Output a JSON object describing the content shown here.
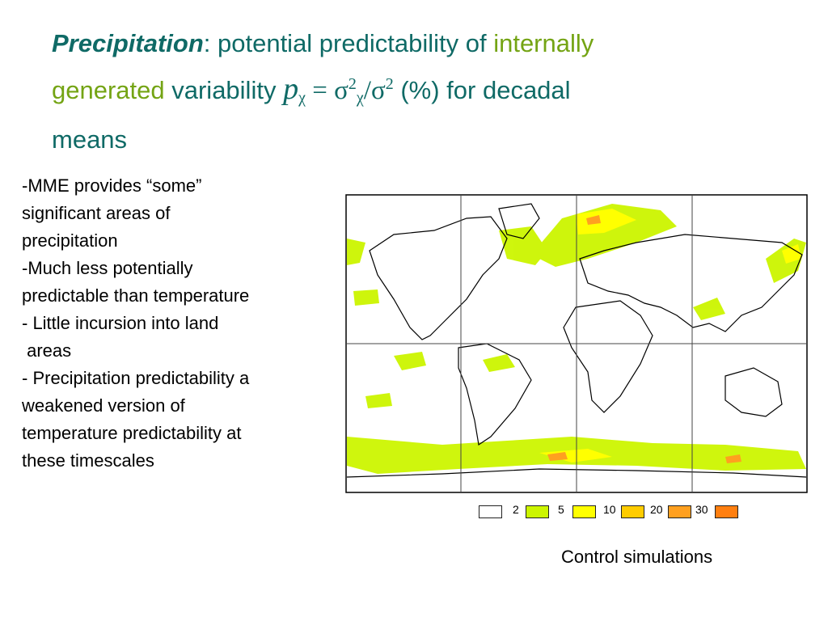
{
  "title": {
    "em": "Precipitation",
    "colon": ": potential predictability of ",
    "internally": "internally",
    "generated": "generated",
    "variability": " variability ",
    "p": "p",
    "chi": "χ",
    "eq": " =  ",
    "sigma": "σ",
    "two": "2",
    "slash": "/",
    "pct": " (%) for decadal",
    "means": "means"
  },
  "bullets": [
    "-MME provides “some”",
    "significant areas of",
    "precipitation",
    "-Much less potentially",
    "predictable than temperature",
    "- Little incursion into land",
    " areas",
    "- Precipitation predictability a",
    "weakened version of",
    "temperature predictability at",
    "these timescales"
  ],
  "legend": {
    "items": [
      {
        "label": "2",
        "color": "#ffffff"
      },
      {
        "label": "5",
        "color": "#ccf500"
      },
      {
        "label": "10",
        "color": "#ffff00"
      },
      {
        "label": "20",
        "color": "#ffcc00"
      },
      {
        "label": "30",
        "color": "#ffa020"
      },
      {
        "label": "",
        "color": "#ff7f10"
      }
    ]
  },
  "caption": "Control simulations"
}
